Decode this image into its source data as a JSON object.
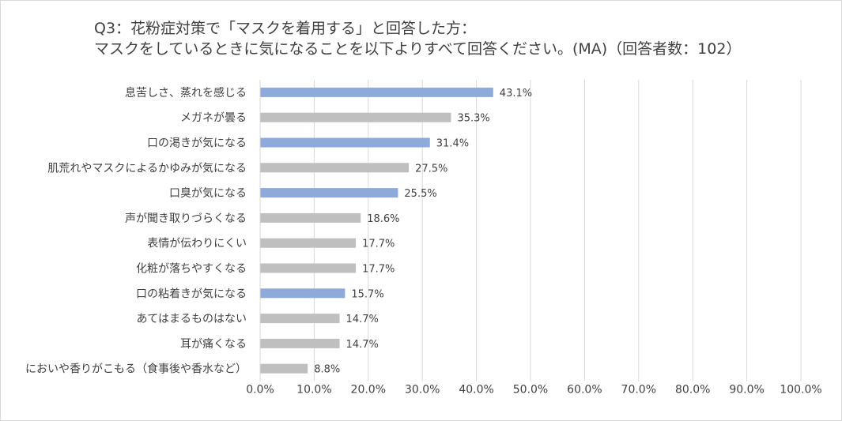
{
  "chart_data": {
    "type": "bar",
    "orientation": "horizontal",
    "title_lines": [
      "Q3：花粉症対策で「マスクを着用する」と回答した方：",
      "マスクをしているときに気になることを以下よりすべて回答ください。(MA)（回答者数：102）"
    ],
    "categories": [
      "息苦しさ、蒸れを感じる",
      "メガネが曇る",
      "口の渇きが気になる",
      "肌荒れやマスクによるかゆみが気になる",
      "口臭が気になる",
      "声が聞き取りづらくなる",
      "表情が伝わりにくい",
      "化粧が落ちやすくなる",
      "口の粘着きが気になる",
      "あてはまるものはない",
      "耳が痛くなる",
      "においや香りがこもる（食事後や香水など）"
    ],
    "values": [
      43.1,
      35.3,
      31.4,
      27.5,
      25.5,
      18.6,
      17.7,
      17.7,
      15.7,
      14.7,
      14.7,
      8.8
    ],
    "value_labels": [
      "43.1%",
      "35.3%",
      "31.4%",
      "27.5%",
      "25.5%",
      "18.6%",
      "17.7%",
      "17.7%",
      "15.7%",
      "14.7%",
      "14.7%",
      "8.8%"
    ],
    "highlighted": [
      true,
      false,
      true,
      false,
      true,
      false,
      false,
      false,
      true,
      false,
      false,
      false
    ],
    "xlim": [
      0,
      100
    ],
    "x_ticks": [
      0,
      10,
      20,
      30,
      40,
      50,
      60,
      70,
      80,
      90,
      100
    ],
    "x_tick_labels": [
      "0.0%",
      "10.0%",
      "20.0%",
      "30.0%",
      "40.0%",
      "50.0%",
      "60.0%",
      "70.0%",
      "80.0%",
      "90.0%",
      "100.0%"
    ],
    "grid": "vertical",
    "legend": "none",
    "colors": {
      "highlight": "#8eaadb",
      "default": "#bfbfbf",
      "grid": "#d9d9d9",
      "text": "#404040"
    }
  }
}
